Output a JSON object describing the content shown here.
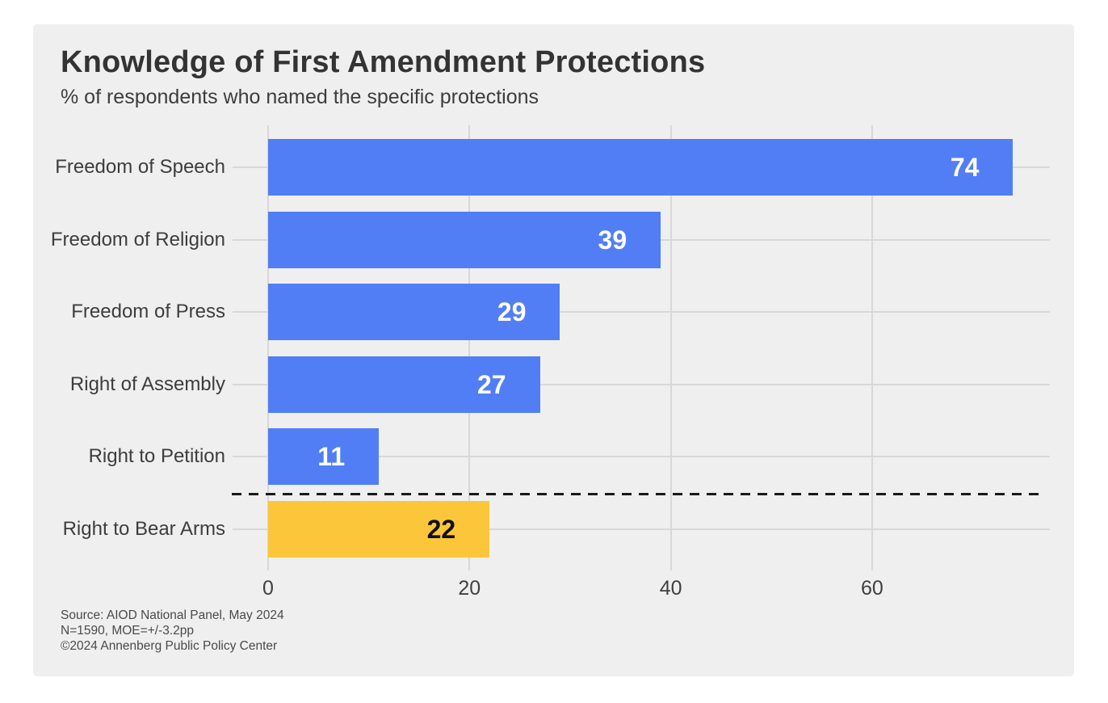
{
  "chart_data": {
    "type": "bar",
    "orientation": "horizontal",
    "title": "Knowledge of First Amendment Protections",
    "subtitle": "% of respondents who named the specific protections",
    "categories": [
      "Freedom of Speech",
      "Freedom of Religion",
      "Freedom of Press",
      "Right of Assembly",
      "Right to Petition",
      "Right to Bear Arms"
    ],
    "values": [
      74,
      39,
      29,
      27,
      11,
      22
    ],
    "x_ticks": [
      "0",
      "20",
      "40",
      "60"
    ],
    "x_tick_values": [
      0,
      20,
      40,
      60
    ],
    "xlim": [
      0,
      77.5
    ],
    "grid": "on",
    "legend": "none",
    "highlight_index": 5,
    "separator_after_index": 4,
    "colors": {
      "bar_default": "#527ef5",
      "bar_highlight": "#fcc63a",
      "value_label_default": "#ffffff",
      "value_label_highlight": "#111111",
      "panel_bg": "#efefef",
      "page_bg": "#ffffff",
      "gridline": "#d8d8d8",
      "separator": "#1a1a1a",
      "text": "#3d3d3d"
    },
    "source_lines": [
      "Source: AIOD National Panel, May 2024",
      "N=1590, MOE=+/-3.2pp",
      "©2024 Annenberg Public Policy Center"
    ]
  }
}
